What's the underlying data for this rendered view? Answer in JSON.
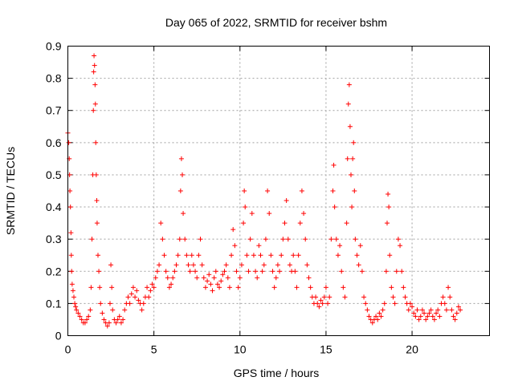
{
  "chart_data": {
    "type": "scatter",
    "title": "Day 065 of 2022, SRMTID for receiver bshm",
    "xlabel": "GPS time / hours",
    "ylabel": "SRMTID / TECUs",
    "xlim": [
      0,
      24.5
    ],
    "ylim": [
      0,
      0.9
    ],
    "x_ticks": [
      0,
      5,
      10,
      15,
      20
    ],
    "x_tick_labels": [
      "0",
      "5",
      "10",
      "15",
      "20"
    ],
    "y_ticks": [
      0,
      0.1,
      0.2,
      0.3,
      0.4,
      0.5,
      0.6,
      0.7,
      0.8,
      0.9
    ],
    "y_tick_labels": [
      "0",
      "0.1",
      "0.2",
      "0.3",
      "0.4",
      "0.5",
      "0.6",
      "0.7",
      "0.8",
      "0.9"
    ],
    "grid": true,
    "marker": "+",
    "color": "#ff0000",
    "series": [
      {
        "name": "SRMTID",
        "points": [
          [
            0.0,
            0.63
          ],
          [
            0.05,
            0.6
          ],
          [
            0.08,
            0.55
          ],
          [
            0.1,
            0.5
          ],
          [
            0.12,
            0.45
          ],
          [
            0.15,
            0.4
          ],
          [
            0.18,
            0.32
          ],
          [
            0.2,
            0.25
          ],
          [
            0.22,
            0.2
          ],
          [
            0.25,
            0.16
          ],
          [
            0.3,
            0.14
          ],
          [
            0.35,
            0.12
          ],
          [
            0.4,
            0.1
          ],
          [
            0.45,
            0.09
          ],
          [
            0.5,
            0.08
          ],
          [
            0.6,
            0.07
          ],
          [
            0.7,
            0.06
          ],
          [
            0.8,
            0.05
          ],
          [
            0.9,
            0.04
          ],
          [
            1.0,
            0.04
          ],
          [
            1.1,
            0.05
          ],
          [
            1.2,
            0.06
          ],
          [
            1.3,
            0.08
          ],
          [
            1.35,
            0.15
          ],
          [
            1.4,
            0.3
          ],
          [
            1.45,
            0.5
          ],
          [
            1.48,
            0.7
          ],
          [
            1.5,
            0.82
          ],
          [
            1.52,
            0.87
          ],
          [
            1.55,
            0.84
          ],
          [
            1.58,
            0.78
          ],
          [
            1.6,
            0.72
          ],
          [
            1.62,
            0.6
          ],
          [
            1.65,
            0.5
          ],
          [
            1.68,
            0.42
          ],
          [
            1.7,
            0.35
          ],
          [
            1.75,
            0.25
          ],
          [
            1.8,
            0.2
          ],
          [
            1.85,
            0.15
          ],
          [
            1.9,
            0.1
          ],
          [
            2.0,
            0.07
          ],
          [
            2.1,
            0.05
          ],
          [
            2.2,
            0.04
          ],
          [
            2.3,
            0.03
          ],
          [
            2.4,
            0.04
          ],
          [
            2.45,
            0.1
          ],
          [
            2.5,
            0.22
          ],
          [
            2.55,
            0.15
          ],
          [
            2.6,
            0.08
          ],
          [
            2.7,
            0.05
          ],
          [
            2.8,
            0.04
          ],
          [
            2.9,
            0.05
          ],
          [
            3.0,
            0.06
          ],
          [
            3.1,
            0.04
          ],
          [
            3.2,
            0.05
          ],
          [
            3.3,
            0.08
          ],
          [
            3.4,
            0.1
          ],
          [
            3.5,
            0.12
          ],
          [
            3.6,
            0.1
          ],
          [
            3.7,
            0.13
          ],
          [
            3.8,
            0.15
          ],
          [
            3.9,
            0.12
          ],
          [
            4.0,
            0.14
          ],
          [
            4.1,
            0.11
          ],
          [
            4.2,
            0.1
          ],
          [
            4.3,
            0.08
          ],
          [
            4.4,
            0.1
          ],
          [
            4.5,
            0.12
          ],
          [
            4.6,
            0.15
          ],
          [
            4.7,
            0.12
          ],
          [
            4.8,
            0.14
          ],
          [
            4.9,
            0.16
          ],
          [
            5.0,
            0.15
          ],
          [
            5.1,
            0.18
          ],
          [
            5.2,
            0.2
          ],
          [
            5.3,
            0.22
          ],
          [
            5.4,
            0.35
          ],
          [
            5.5,
            0.3
          ],
          [
            5.6,
            0.25
          ],
          [
            5.7,
            0.2
          ],
          [
            5.8,
            0.18
          ],
          [
            5.9,
            0.15
          ],
          [
            6.0,
            0.16
          ],
          [
            6.1,
            0.18
          ],
          [
            6.2,
            0.2
          ],
          [
            6.3,
            0.22
          ],
          [
            6.4,
            0.25
          ],
          [
            6.5,
            0.3
          ],
          [
            6.55,
            0.45
          ],
          [
            6.6,
            0.55
          ],
          [
            6.65,
            0.5
          ],
          [
            6.7,
            0.38
          ],
          [
            6.8,
            0.3
          ],
          [
            6.9,
            0.25
          ],
          [
            7.0,
            0.22
          ],
          [
            7.1,
            0.2
          ],
          [
            7.2,
            0.25
          ],
          [
            7.3,
            0.22
          ],
          [
            7.4,
            0.2
          ],
          [
            7.5,
            0.18
          ],
          [
            7.6,
            0.25
          ],
          [
            7.7,
            0.3
          ],
          [
            7.8,
            0.22
          ],
          [
            7.9,
            0.18
          ],
          [
            8.0,
            0.15
          ],
          [
            8.1,
            0.17
          ],
          [
            8.2,
            0.19
          ],
          [
            8.3,
            0.16
          ],
          [
            8.4,
            0.14
          ],
          [
            8.5,
            0.18
          ],
          [
            8.6,
            0.2
          ],
          [
            8.7,
            0.16
          ],
          [
            8.8,
            0.15
          ],
          [
            8.9,
            0.17
          ],
          [
            9.0,
            0.19
          ],
          [
            9.1,
            0.2
          ],
          [
            9.2,
            0.22
          ],
          [
            9.3,
            0.18
          ],
          [
            9.4,
            0.15
          ],
          [
            9.5,
            0.25
          ],
          [
            9.6,
            0.33
          ],
          [
            9.7,
            0.28
          ],
          [
            9.8,
            0.2
          ],
          [
            9.9,
            0.15
          ],
          [
            10.0,
            0.18
          ],
          [
            10.1,
            0.22
          ],
          [
            10.2,
            0.35
          ],
          [
            10.25,
            0.45
          ],
          [
            10.3,
            0.4
          ],
          [
            10.4,
            0.25
          ],
          [
            10.5,
            0.2
          ],
          [
            10.6,
            0.3
          ],
          [
            10.7,
            0.38
          ],
          [
            10.8,
            0.25
          ],
          [
            10.9,
            0.2
          ],
          [
            11.0,
            0.18
          ],
          [
            11.1,
            0.28
          ],
          [
            11.2,
            0.25
          ],
          [
            11.3,
            0.2
          ],
          [
            11.4,
            0.22
          ],
          [
            11.5,
            0.3
          ],
          [
            11.6,
            0.45
          ],
          [
            11.7,
            0.38
          ],
          [
            11.8,
            0.25
          ],
          [
            11.9,
            0.2
          ],
          [
            12.0,
            0.15
          ],
          [
            12.1,
            0.18
          ],
          [
            12.2,
            0.22
          ],
          [
            12.3,
            0.2
          ],
          [
            12.4,
            0.25
          ],
          [
            12.5,
            0.3
          ],
          [
            12.6,
            0.35
          ],
          [
            12.7,
            0.42
          ],
          [
            12.8,
            0.3
          ],
          [
            12.9,
            0.22
          ],
          [
            13.0,
            0.2
          ],
          [
            13.1,
            0.25
          ],
          [
            13.2,
            0.2
          ],
          [
            13.3,
            0.15
          ],
          [
            13.4,
            0.25
          ],
          [
            13.5,
            0.35
          ],
          [
            13.6,
            0.45
          ],
          [
            13.7,
            0.38
          ],
          [
            13.8,
            0.3
          ],
          [
            13.9,
            0.22
          ],
          [
            14.0,
            0.18
          ],
          [
            14.1,
            0.15
          ],
          [
            14.2,
            0.12
          ],
          [
            14.3,
            0.1
          ],
          [
            14.4,
            0.12
          ],
          [
            14.5,
            0.1
          ],
          [
            14.6,
            0.09
          ],
          [
            14.7,
            0.11
          ],
          [
            14.8,
            0.1
          ],
          [
            14.9,
            0.12
          ],
          [
            15.0,
            0.15
          ],
          [
            15.1,
            0.1
          ],
          [
            15.2,
            0.12
          ],
          [
            15.3,
            0.3
          ],
          [
            15.4,
            0.45
          ],
          [
            15.45,
            0.53
          ],
          [
            15.5,
            0.4
          ],
          [
            15.6,
            0.3
          ],
          [
            15.7,
            0.25
          ],
          [
            15.8,
            0.28
          ],
          [
            15.9,
            0.2
          ],
          [
            16.0,
            0.15
          ],
          [
            16.1,
            0.12
          ],
          [
            16.2,
            0.35
          ],
          [
            16.25,
            0.55
          ],
          [
            16.3,
            0.72
          ],
          [
            16.35,
            0.78
          ],
          [
            16.4,
            0.65
          ],
          [
            16.45,
            0.5
          ],
          [
            16.5,
            0.4
          ],
          [
            16.55,
            0.55
          ],
          [
            16.6,
            0.6
          ],
          [
            16.65,
            0.45
          ],
          [
            16.7,
            0.3
          ],
          [
            16.8,
            0.25
          ],
          [
            16.9,
            0.22
          ],
          [
            17.0,
            0.28
          ],
          [
            17.1,
            0.2
          ],
          [
            17.2,
            0.12
          ],
          [
            17.3,
            0.1
          ],
          [
            17.4,
            0.08
          ],
          [
            17.5,
            0.06
          ],
          [
            17.6,
            0.05
          ],
          [
            17.7,
            0.04
          ],
          [
            17.8,
            0.05
          ],
          [
            17.9,
            0.06
          ],
          [
            18.0,
            0.05
          ],
          [
            18.1,
            0.07
          ],
          [
            18.2,
            0.06
          ],
          [
            18.3,
            0.08
          ],
          [
            18.4,
            0.1
          ],
          [
            18.5,
            0.2
          ],
          [
            18.55,
            0.35
          ],
          [
            18.6,
            0.44
          ],
          [
            18.65,
            0.4
          ],
          [
            18.7,
            0.25
          ],
          [
            18.8,
            0.15
          ],
          [
            18.9,
            0.12
          ],
          [
            19.0,
            0.1
          ],
          [
            19.1,
            0.2
          ],
          [
            19.2,
            0.3
          ],
          [
            19.3,
            0.28
          ],
          [
            19.4,
            0.2
          ],
          [
            19.5,
            0.15
          ],
          [
            19.6,
            0.12
          ],
          [
            19.7,
            0.1
          ],
          [
            19.8,
            0.08
          ],
          [
            19.9,
            0.1
          ],
          [
            20.0,
            0.09
          ],
          [
            20.1,
            0.07
          ],
          [
            20.2,
            0.06
          ],
          [
            20.3,
            0.08
          ],
          [
            20.4,
            0.05
          ],
          [
            20.5,
            0.06
          ],
          [
            20.6,
            0.08
          ],
          [
            20.7,
            0.07
          ],
          [
            20.8,
            0.05
          ],
          [
            20.9,
            0.06
          ],
          [
            21.0,
            0.07
          ],
          [
            21.1,
            0.08
          ],
          [
            21.2,
            0.06
          ],
          [
            21.3,
            0.05
          ],
          [
            21.4,
            0.07
          ],
          [
            21.5,
            0.08
          ],
          [
            21.6,
            0.06
          ],
          [
            21.7,
            0.1
          ],
          [
            21.8,
            0.12
          ],
          [
            21.9,
            0.1
          ],
          [
            22.0,
            0.08
          ],
          [
            22.1,
            0.15
          ],
          [
            22.2,
            0.12
          ],
          [
            22.3,
            0.08
          ],
          [
            22.4,
            0.06
          ],
          [
            22.5,
            0.05
          ],
          [
            22.6,
            0.07
          ],
          [
            22.7,
            0.09
          ],
          [
            22.8,
            0.08
          ]
        ]
      }
    ]
  }
}
